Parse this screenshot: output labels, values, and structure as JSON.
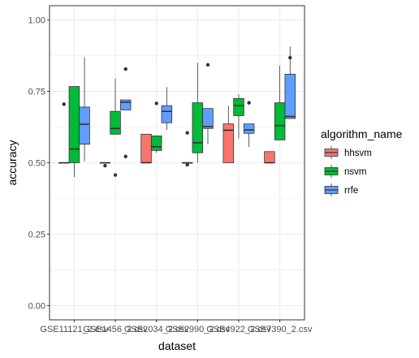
{
  "chart_data": {
    "type": "boxplot",
    "xlabel": "dataset",
    "ylabel": "accuracy",
    "ylim": [
      -0.05,
      1.05
    ],
    "yticks": [
      0.0,
      0.25,
      0.5,
      0.75,
      1.0
    ],
    "ytick_labels": [
      "0.00",
      "0.25",
      "0.50",
      "0.75",
      "1.00"
    ],
    "categories": [
      "GSE11121_2.csv",
      "GSE1456_2.csv",
      "GSE2034_2.csv",
      "GSE2990_2.csv",
      "GSE4922_2.csv",
      "GSE7390_2.csv"
    ],
    "grid": true,
    "legend": {
      "title": "algorithm_name",
      "position": "right",
      "entries": [
        {
          "name": "hhsvm",
          "color": "#F8766D"
        },
        {
          "name": "nsvm",
          "color": "#00BA38"
        },
        {
          "name": "rrfe",
          "color": "#619CFF"
        }
      ]
    },
    "series": [
      {
        "name": "hhsvm",
        "color": "#F8766D",
        "boxes": [
          {
            "min": 0.5,
            "q1": 0.5,
            "median": 0.5,
            "q3": 0.5,
            "max": 0.5,
            "outliers": [
              0.705
            ]
          },
          {
            "min": 0.5,
            "q1": 0.5,
            "median": 0.5,
            "q3": 0.5,
            "max": 0.5,
            "outliers": [
              0.49
            ]
          },
          {
            "min": 0.5,
            "q1": 0.5,
            "median": 0.5,
            "q3": 0.6,
            "max": 0.6,
            "outliers": []
          },
          {
            "min": 0.5,
            "q1": 0.5,
            "median": 0.5,
            "q3": 0.5,
            "max": 0.5,
            "outliers": [
              0.605,
              0.493
            ]
          },
          {
            "min": 0.5,
            "q1": 0.5,
            "median": 0.614,
            "q3": 0.636,
            "max": 0.7,
            "outliers": []
          },
          {
            "min": 0.5,
            "q1": 0.5,
            "median": 0.5,
            "q3": 0.539,
            "max": 0.539,
            "outliers": []
          }
        ]
      },
      {
        "name": "nsvm",
        "color": "#00BA38",
        "boxes": [
          {
            "min": 0.45,
            "q1": 0.5,
            "median": 0.548,
            "q3": 0.767,
            "max": 0.767,
            "outliers": []
          },
          {
            "min": 0.6,
            "q1": 0.6,
            "median": 0.62,
            "q3": 0.68,
            "max": 0.795,
            "outliers": [
              0.457
            ]
          },
          {
            "min": 0.535,
            "q1": 0.543,
            "median": 0.556,
            "q3": 0.594,
            "max": 0.594,
            "outliers": [
              0.708
            ]
          },
          {
            "min": 0.5,
            "q1": 0.535,
            "median": 0.57,
            "q3": 0.71,
            "max": 0.85,
            "outliers": []
          },
          {
            "min": 0.585,
            "q1": 0.665,
            "median": 0.7,
            "q3": 0.725,
            "max": 0.74,
            "outliers": []
          },
          {
            "min": 0.58,
            "q1": 0.58,
            "median": 0.63,
            "q3": 0.71,
            "max": 0.84,
            "outliers": []
          }
        ]
      },
      {
        "name": "rrfe",
        "color": "#619CFF",
        "boxes": [
          {
            "min": 0.505,
            "q1": 0.565,
            "median": 0.635,
            "q3": 0.695,
            "max": 0.87,
            "outliers": []
          },
          {
            "min": 0.685,
            "q1": 0.685,
            "median": 0.712,
            "q3": 0.72,
            "max": 0.72,
            "outliers": [
              0.828,
              0.522
            ]
          },
          {
            "min": 0.615,
            "q1": 0.64,
            "median": 0.68,
            "q3": 0.7,
            "max": 0.765,
            "outliers": []
          },
          {
            "min": 0.565,
            "q1": 0.62,
            "median": 0.627,
            "q3": 0.69,
            "max": 0.69,
            "outliers": [
              0.843
            ]
          },
          {
            "min": 0.555,
            "q1": 0.603,
            "median": 0.615,
            "q3": 0.636,
            "max": 0.636,
            "outliers": [
              0.71
            ]
          },
          {
            "min": 0.655,
            "q1": 0.655,
            "median": 0.662,
            "q3": 0.81,
            "max": 0.907,
            "outliers": [
              0.868
            ]
          }
        ]
      }
    ]
  }
}
